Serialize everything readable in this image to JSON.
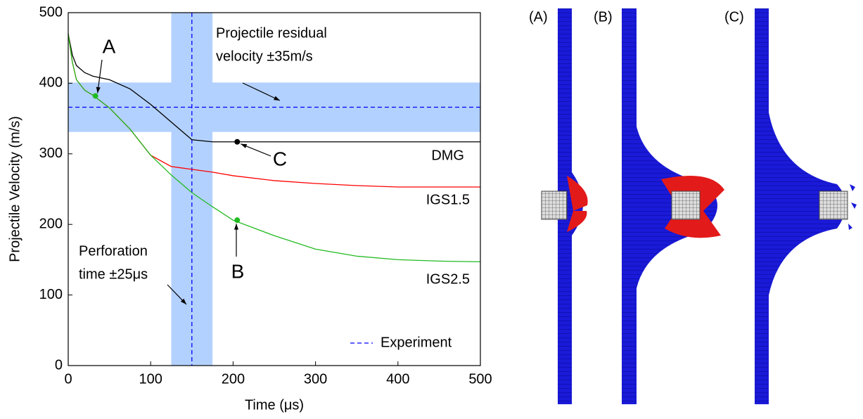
{
  "chart_data": {
    "type": "line",
    "xlabel": "Time (μs)",
    "ylabel": "Projectile Velocity (m/s)",
    "x": [
      0,
      5,
      10,
      20,
      30,
      50,
      75,
      100,
      125,
      150,
      175,
      200,
      250,
      300,
      350,
      400,
      450,
      500
    ],
    "series": [
      {
        "name": "DMG",
        "color": "#000000",
        "values": [
          470,
          440,
          425,
          415,
          410,
          405,
          392,
          370,
          345,
          320,
          317,
          317,
          317,
          317,
          317,
          317,
          317,
          317
        ]
      },
      {
        "name": "IGS1.5",
        "color": "#ff0000",
        "values": [
          470,
          430,
          405,
          390,
          383,
          365,
          335,
          298,
          282,
          278,
          274,
          269,
          262,
          258,
          255,
          253,
          253,
          253
        ]
      },
      {
        "name": "IGS2.5",
        "color": "#22bb22",
        "values": [
          470,
          430,
          405,
          390,
          383,
          365,
          335,
          298,
          270,
          245,
          225,
          206,
          184,
          165,
          155,
          150,
          148,
          147
        ]
      }
    ],
    "points": [
      {
        "label": "A",
        "x": 33,
        "y": 382,
        "color": "#22bb22"
      },
      {
        "label": "B",
        "x": 205,
        "y": 206,
        "color": "#22bb22"
      },
      {
        "label": "C",
        "x": 205,
        "y": 317,
        "color": "#000000"
      }
    ],
    "experiment": {
      "name": "Experiment",
      "color": "#0000ff",
      "band_color": "#b3d1ff",
      "time": 150,
      "time_tolerance": 25,
      "velocity": 366,
      "velocity_tolerance": 35,
      "time_label": [
        "Perforation",
        "time ±25μs"
      ],
      "velocity_label": [
        "Projectile residual",
        "velocity ±35m/s"
      ]
    },
    "xlim": [
      0,
      500
    ],
    "ylim": [
      0,
      500
    ],
    "xticks": [
      0,
      100,
      200,
      300,
      400,
      500
    ],
    "yticks": [
      0,
      100,
      200,
      300,
      400,
      500
    ]
  },
  "panel_labels": [
    "(A)",
    "(B)",
    "(C)"
  ]
}
